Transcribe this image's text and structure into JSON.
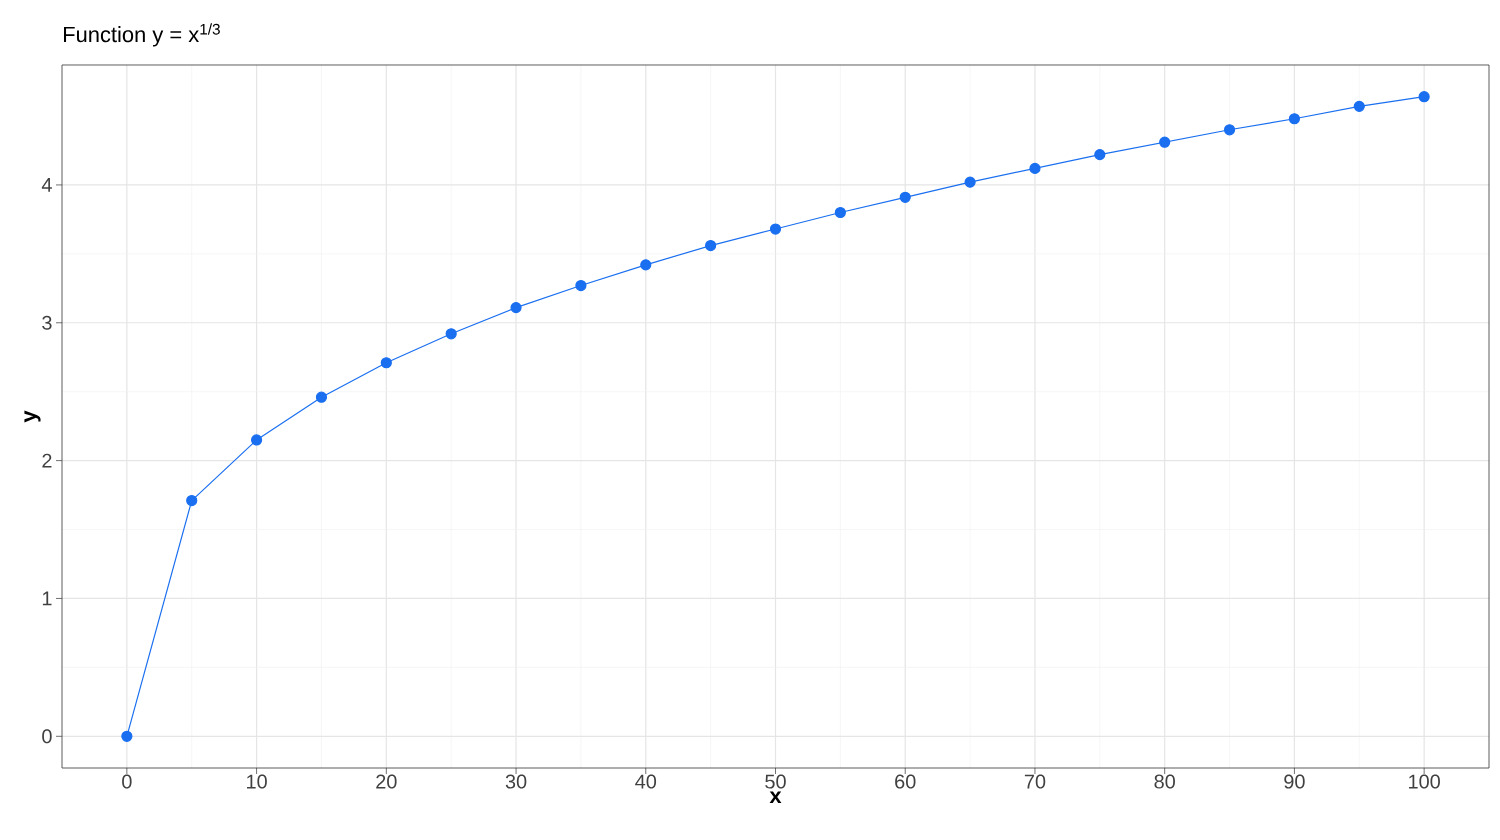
{
  "chart_data": {
    "type": "line",
    "title": "Function y = x$^{1/3}$",
    "xlabel": "x",
    "ylabel": "y",
    "x": [
      0,
      5,
      10,
      15,
      20,
      25,
      30,
      35,
      40,
      45,
      50,
      55,
      60,
      65,
      70,
      75,
      80,
      85,
      90,
      95,
      100
    ],
    "values": [
      0,
      1.71,
      2.15,
      2.46,
      2.71,
      2.92,
      3.11,
      3.27,
      3.42,
      3.56,
      3.68,
      3.8,
      3.91,
      4.02,
      4.12,
      4.22,
      4.31,
      4.4,
      4.48,
      4.57,
      4.64
    ],
    "color": "#1a6ff0",
    "xlim": [
      -5,
      105
    ],
    "ylim": [
      -0.23,
      4.87
    ],
    "xticks": [
      0,
      10,
      20,
      30,
      40,
      50,
      60,
      70,
      80,
      90,
      100
    ],
    "yticks": [
      0,
      1,
      2,
      3,
      4
    ],
    "grid": true,
    "marker": "circle",
    "line_style": "solid"
  }
}
